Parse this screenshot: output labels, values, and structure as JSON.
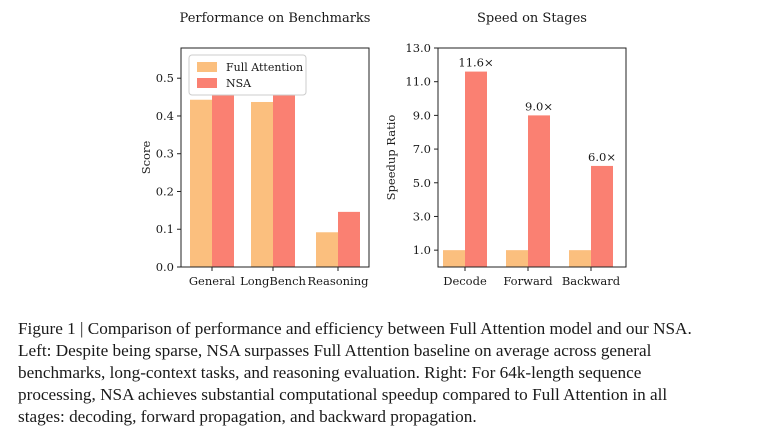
{
  "chart_data": [
    {
      "type": "bar",
      "title": "Performance on Benchmarks",
      "xlabel": "",
      "ylabel": "Score",
      "categories": [
        "General",
        "LongBench",
        "Reasoning"
      ],
      "series": [
        {
          "name": "Full Attention",
          "values": [
            0.443,
            0.437,
            0.092
          ]
        },
        {
          "name": "NSA",
          "values": [
            0.456,
            0.469,
            0.146
          ]
        }
      ],
      "ylim": [
        0,
        0.58
      ],
      "yticks": [
        "0.0",
        "0.1",
        "0.2",
        "0.3",
        "0.4",
        "0.5"
      ],
      "legend": "top-left",
      "grid": false,
      "colors": {
        "Full Attention": "#fbbf7e",
        "NSA": "#fa8072"
      }
    },
    {
      "type": "bar",
      "title": "Speed on Stages",
      "xlabel": "",
      "ylabel": "Speedup Ratio",
      "categories": [
        "Decode",
        "Forward",
        "Backward"
      ],
      "series": [
        {
          "name": "Full Attention",
          "values": [
            1.0,
            1.0,
            1.0
          ]
        },
        {
          "name": "NSA",
          "values": [
            11.6,
            9.0,
            6.0
          ]
        }
      ],
      "annotations": [
        "11.6×",
        "9.0×",
        "6.0×"
      ],
      "ylim": [
        0,
        13.0
      ],
      "yticks": [
        "1.0",
        "3.0",
        "5.0",
        "7.0",
        "9.0",
        "11.0",
        "13.0"
      ],
      "grid": false,
      "colors": {
        "Full Attention": "#fbbf7e",
        "NSA": "#fa8072"
      }
    }
  ],
  "caption": [
    "Figure 1 | Comparison of performance and efficiency between Full Attention model and our NSA.",
    "Left: Despite being sparse, NSA surpasses Full Attention baseline on average across general",
    "benchmarks, long-context tasks, and reasoning evaluation.  Right: For 64k-length sequence",
    "processing, NSA achieves substantial computational speedup compared to Full Attention in all",
    "stages: decoding, forward propagation, and backward propagation."
  ]
}
